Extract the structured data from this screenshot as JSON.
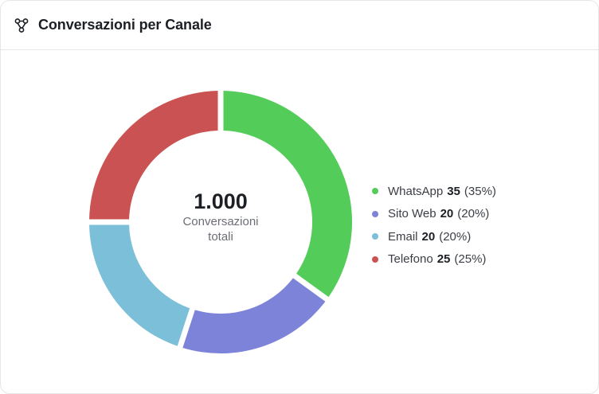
{
  "header": {
    "icon": "workflow-branch-icon",
    "title": "Conversazioni per Canale"
  },
  "center": {
    "total": "1.000",
    "caption": "Conversazioni totali"
  },
  "chart_data": {
    "type": "pie",
    "variant": "donut",
    "title": "Conversazioni per Canale",
    "total": 1000,
    "slices": [
      {
        "label": "WhatsApp",
        "value": 35,
        "percent": "(35%)",
        "color": "#54cc5a"
      },
      {
        "label": "Sito Web",
        "value": 20,
        "percent": "(20%)",
        "color": "#7c83d8"
      },
      {
        "label": "Email",
        "value": 20,
        "percent": "(20%)",
        "color": "#7bbfd8"
      },
      {
        "label": "Telefono",
        "value": 25,
        "percent": "(25%)",
        "color": "#cb5252"
      }
    ],
    "legend": "right"
  }
}
